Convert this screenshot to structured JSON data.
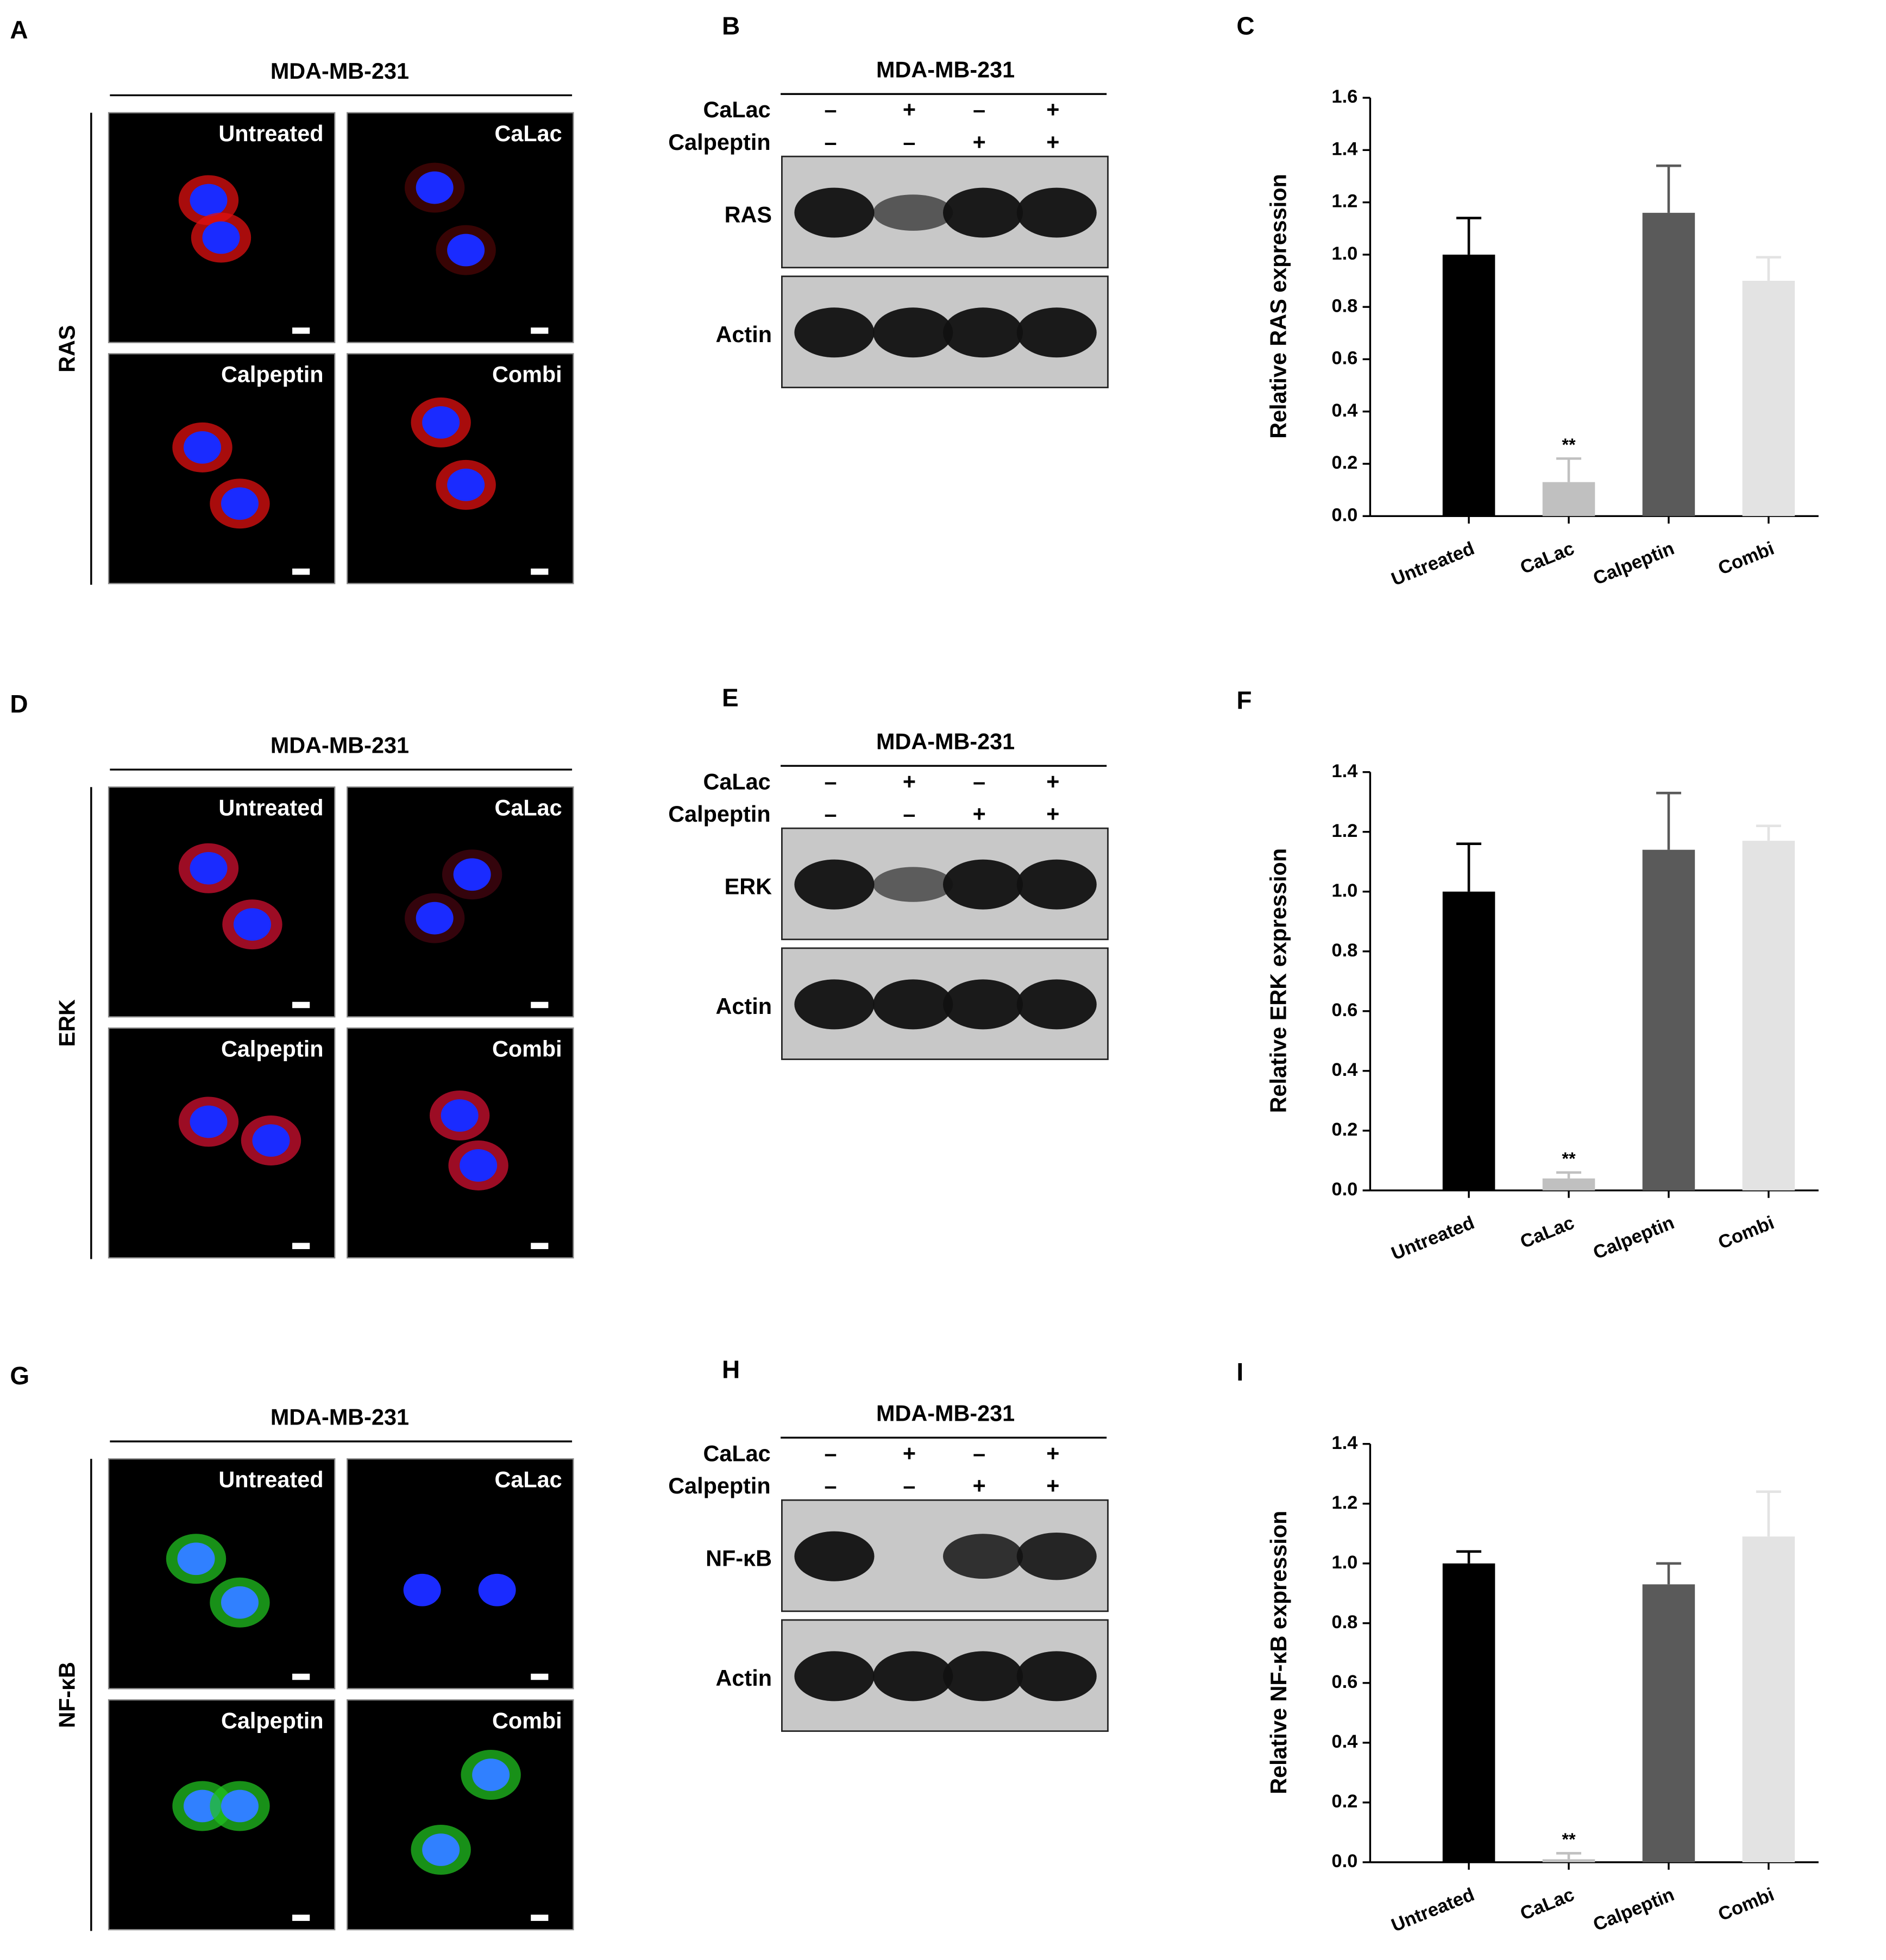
{
  "imaging": [
    {
      "letter": "A",
      "cell_line": "MDA-MB-231",
      "marker": "RAS",
      "conditions": [
        "Untreated",
        "CaLac",
        "Calpeptin",
        "Combi"
      ]
    },
    {
      "letter": "D",
      "cell_line": "MDA-MB-231",
      "marker": "ERK",
      "conditions": [
        "Untreated",
        "CaLac",
        "Calpeptin",
        "Combi"
      ]
    },
    {
      "letter": "G",
      "cell_line": "MDA-MB-231",
      "marker": "NF-κB",
      "conditions": [
        "Untreated",
        "CaLac",
        "Calpeptin",
        "Combi"
      ]
    }
  ],
  "blots": [
    {
      "letter": "B",
      "cell_line": "MDA-MB-231",
      "treatments": [
        {
          "name": "CaLac",
          "signs": [
            "–",
            "+",
            "–",
            "+"
          ]
        },
        {
          "name": "Calpeptin",
          "signs": [
            "–",
            "–",
            "+",
            "+"
          ]
        }
      ],
      "bands": [
        "RAS",
        "Actin"
      ]
    },
    {
      "letter": "E",
      "cell_line": "MDA-MB-231",
      "treatments": [
        {
          "name": "CaLac",
          "signs": [
            "–",
            "+",
            "–",
            "+"
          ]
        },
        {
          "name": "Calpeptin",
          "signs": [
            "–",
            "–",
            "+",
            "+"
          ]
        }
      ],
      "bands": [
        "ERK",
        "Actin"
      ]
    },
    {
      "letter": "H",
      "cell_line": "MDA-MB-231",
      "treatments": [
        {
          "name": "CaLac",
          "signs": [
            "–",
            "+",
            "–",
            "+"
          ]
        },
        {
          "name": "Calpeptin",
          "signs": [
            "–",
            "–",
            "+",
            "+"
          ]
        }
      ],
      "bands": [
        "NF-κB",
        "Actin"
      ]
    }
  ],
  "chart_data": [
    {
      "type": "bar",
      "letter": "C",
      "ylabel": "Relative RAS expression",
      "categories": [
        "Untreated",
        "CaLac",
        "Calpeptin",
        "Combi"
      ],
      "values": [
        1.0,
        0.13,
        1.16,
        0.9
      ],
      "errors": [
        0.14,
        0.09,
        0.18,
        0.09
      ],
      "significance": [
        null,
        "**",
        null,
        null
      ],
      "colors": [
        "#000000",
        "#c0c0c0",
        "#5a5a5a",
        "#e3e3e3"
      ],
      "ylim": [
        0,
        1.6
      ],
      "yticks": [
        {
          "value": 0,
          "label": "0.0"
        },
        0.2,
        0.4,
        0.6,
        0.8,
        {
          "value": 1,
          "label": "1.0"
        },
        1.2,
        1.4,
        1.6
      ]
    },
    {
      "type": "bar",
      "letter": "F",
      "ylabel": "Relative ERK expression",
      "categories": [
        "Untreated",
        "CaLac",
        "Calpeptin",
        "Combi"
      ],
      "values": [
        1.0,
        0.04,
        1.14,
        1.17
      ],
      "errors": [
        0.16,
        0.02,
        0.19,
        0.05
      ],
      "significance": [
        null,
        "**",
        null,
        null
      ],
      "colors": [
        "#000000",
        "#c0c0c0",
        "#5a5a5a",
        "#e3e3e3"
      ],
      "ylim": [
        0,
        1.4
      ],
      "yticks": [
        {
          "value": 0,
          "label": "0.0"
        },
        0.2,
        0.4,
        0.6,
        0.8,
        {
          "value": 1,
          "label": "1.0"
        },
        1.2,
        1.4
      ]
    },
    {
      "type": "bar",
      "letter": "I",
      "ylabel": "Relative NF-κB expression",
      "categories": [
        "Untreated",
        "CaLac",
        "Calpeptin",
        "Combi"
      ],
      "values": [
        1.0,
        0.01,
        0.93,
        1.09
      ],
      "errors": [
        0.04,
        0.02,
        0.07,
        0.15
      ],
      "significance": [
        null,
        "**",
        null,
        null
      ],
      "colors": [
        "#000000",
        "#c0c0c0",
        "#5a5a5a",
        "#e3e3e3"
      ],
      "ylim": [
        0,
        1.4
      ],
      "yticks": [
        {
          "value": 0,
          "label": "0.0"
        },
        0.2,
        0.4,
        0.6,
        0.8,
        {
          "value": 1,
          "label": "1.0"
        },
        1.2,
        1.4
      ]
    }
  ]
}
